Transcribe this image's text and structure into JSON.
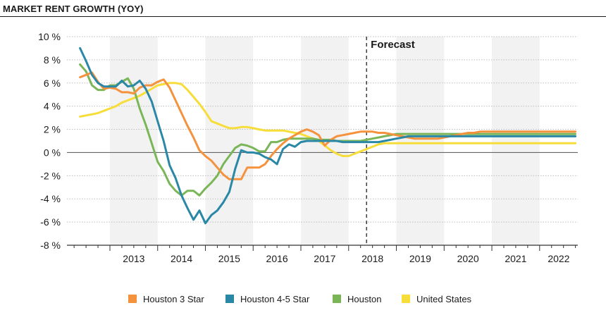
{
  "title": "MARKET RENT GROWTH (YOY)",
  "chart_data": {
    "type": "line",
    "title": "MARKET RENT GROWTH (YOY)",
    "xlabel": "",
    "ylabel": "",
    "ylim": [
      -8,
      10
    ],
    "yticks": [
      -8,
      -6,
      -4,
      -2,
      0,
      2,
      4,
      6,
      8,
      10
    ],
    "ytick_labels": [
      "-8 %",
      "-6 %",
      "-4 %",
      "-2 %",
      "0 %",
      "2 %",
      "4 %",
      "6 %",
      "8 %",
      "10 %"
    ],
    "xlim": [
      2012.1,
      2022.8
    ],
    "year_labels": [
      "2013",
      "2014",
      "2015",
      "2016",
      "2017",
      "2018",
      "2019",
      "2020",
      "2021",
      "2022"
    ],
    "grid": true,
    "forecast_label": "Forecast",
    "forecast_x": 2018.375,
    "legend_position": "bottom",
    "x": [
      2012.375,
      2012.5,
      2012.625,
      2012.75,
      2012.875,
      2013.0,
      2013.125,
      2013.25,
      2013.375,
      2013.5,
      2013.625,
      2013.75,
      2013.875,
      2014.0,
      2014.125,
      2014.25,
      2014.375,
      2014.5,
      2014.625,
      2014.75,
      2014.875,
      2015.0,
      2015.125,
      2015.25,
      2015.375,
      2015.5,
      2015.625,
      2015.75,
      2015.875,
      2016.0,
      2016.125,
      2016.25,
      2016.375,
      2016.5,
      2016.625,
      2016.75,
      2016.875,
      2017.0,
      2017.125,
      2017.25,
      2017.375,
      2017.5,
      2017.625,
      2017.75,
      2017.875,
      2018.0,
      2018.125,
      2018.25,
      2018.375,
      2018.5,
      2018.625,
      2018.75,
      2018.875,
      2019.0,
      2019.125,
      2019.25,
      2019.375,
      2019.5,
      2019.625,
      2019.75,
      2019.875,
      2020.0,
      2020.125,
      2020.25,
      2020.375,
      2020.5,
      2020.625,
      2020.75,
      2020.875,
      2021.0,
      2021.125,
      2021.25,
      2021.375,
      2021.5,
      2021.625,
      2021.75,
      2021.875,
      2022.0,
      2022.125,
      2022.25,
      2022.375,
      2022.5,
      2022.625,
      2022.75
    ],
    "series": [
      {
        "name": "Houston 3 Star",
        "color": "#f5923e",
        "values": [
          6.5,
          6.7,
          6.9,
          6.1,
          5.5,
          5.6,
          5.5,
          5.2,
          5.2,
          5.1,
          5.6,
          5.8,
          5.8,
          6.1,
          6.3,
          5.6,
          4.5,
          3.4,
          2.3,
          1.3,
          0.2,
          -0.3,
          -0.7,
          -1.3,
          -1.9,
          -2.3,
          -2.3,
          -2.3,
          -1.3,
          -1.3,
          -1.3,
          -1.0,
          -0.3,
          0.3,
          0.8,
          1.2,
          1.5,
          1.8,
          2.0,
          1.8,
          1.5,
          0.6,
          1.1,
          1.4,
          1.5,
          1.6,
          1.7,
          1.8,
          1.8,
          1.8,
          1.7,
          1.7,
          1.6,
          1.5,
          1.4,
          1.3,
          1.2,
          1.2,
          1.2,
          1.2,
          1.2,
          1.3,
          1.4,
          1.5,
          1.6,
          1.7,
          1.7,
          1.8,
          1.8,
          1.8,
          1.8,
          1.8,
          1.8,
          1.8,
          1.8,
          1.8,
          1.8,
          1.8,
          1.8,
          1.8,
          1.8,
          1.8,
          1.8,
          1.8
        ]
      },
      {
        "name": "Houston 4-5 Star",
        "color": "#2a88a6",
        "values": [
          9.0,
          7.9,
          6.7,
          6.0,
          5.7,
          5.7,
          5.7,
          6.2,
          5.7,
          5.8,
          6.2,
          5.5,
          4.4,
          2.7,
          1.0,
          -1.1,
          -2.2,
          -3.7,
          -4.8,
          -5.8,
          -5.0,
          -6.1,
          -5.4,
          -5.0,
          -4.3,
          -3.4,
          -1.4,
          0.2,
          0.0,
          0.0,
          -0.1,
          -0.4,
          -0.6,
          -1.0,
          0.3,
          0.7,
          0.5,
          0.9,
          1.0,
          1.0,
          1.0,
          1.0,
          1.0,
          1.0,
          0.9,
          0.9,
          0.9,
          0.9,
          0.9,
          0.9,
          0.9,
          1.0,
          1.1,
          1.2,
          1.3,
          1.4,
          1.4,
          1.4,
          1.4,
          1.4,
          1.4,
          1.4,
          1.4,
          1.4,
          1.4,
          1.4,
          1.4,
          1.4,
          1.4,
          1.4,
          1.4,
          1.4,
          1.4,
          1.4,
          1.4,
          1.4,
          1.4,
          1.4,
          1.4,
          1.4,
          1.4,
          1.4,
          1.4,
          1.4
        ]
      },
      {
        "name": "Houston",
        "color": "#7ab657",
        "values": [
          7.6,
          7.0,
          5.8,
          5.4,
          5.4,
          5.8,
          5.8,
          6.1,
          6.4,
          5.5,
          3.8,
          2.4,
          0.8,
          -0.8,
          -1.6,
          -2.7,
          -3.3,
          -3.7,
          -3.3,
          -3.3,
          -3.7,
          -3.1,
          -2.6,
          -2.0,
          -1.0,
          -0.3,
          0.4,
          0.7,
          0.6,
          0.4,
          0.1,
          0.1,
          0.9,
          0.9,
          1.1,
          1.2,
          1.2,
          1.2,
          1.2,
          1.2,
          1.1,
          1.1,
          1.1,
          1.0,
          1.0,
          1.0,
          1.0,
          1.0,
          1.1,
          1.2,
          1.3,
          1.4,
          1.5,
          1.6,
          1.6,
          1.6,
          1.6,
          1.6,
          1.6,
          1.6,
          1.6,
          1.6,
          1.6,
          1.6,
          1.6,
          1.6,
          1.6,
          1.6,
          1.6,
          1.6,
          1.6,
          1.6,
          1.6,
          1.6,
          1.6,
          1.6,
          1.6,
          1.6,
          1.6,
          1.6,
          1.6,
          1.6,
          1.6,
          1.6
        ]
      },
      {
        "name": "United States",
        "color": "#f7dd3a",
        "values": [
          3.1,
          3.2,
          3.3,
          3.4,
          3.6,
          3.8,
          4.0,
          4.3,
          4.5,
          4.7,
          4.9,
          5.2,
          5.5,
          5.8,
          5.9,
          6.0,
          6.0,
          5.9,
          5.4,
          4.8,
          4.2,
          3.5,
          2.7,
          2.5,
          2.3,
          2.1,
          2.1,
          2.2,
          2.2,
          2.1,
          2.0,
          1.9,
          1.9,
          1.9,
          1.9,
          1.8,
          1.7,
          1.6,
          1.4,
          1.2,
          1.0,
          0.6,
          0.2,
          -0.1,
          -0.3,
          -0.3,
          -0.1,
          0.1,
          0.3,
          0.5,
          0.7,
          0.8,
          0.8,
          0.8,
          0.8,
          0.8,
          0.8,
          0.8,
          0.8,
          0.8,
          0.8,
          0.8,
          0.8,
          0.8,
          0.8,
          0.8,
          0.8,
          0.8,
          0.8,
          0.8,
          0.8,
          0.8,
          0.8,
          0.8,
          0.8,
          0.8,
          0.8,
          0.8,
          0.8,
          0.8,
          0.8,
          0.8,
          0.8,
          0.8
        ]
      }
    ]
  }
}
